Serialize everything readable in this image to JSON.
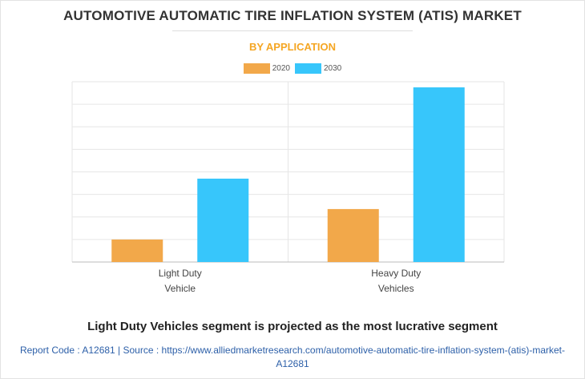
{
  "header": {
    "title": "AUTOMOTIVE AUTOMATIC TIRE INFLATION SYSTEM (ATIS) MARKET",
    "subtitle": "BY APPLICATION"
  },
  "legend": {
    "items": [
      {
        "label": "2020",
        "color": "#f2a84a"
      },
      {
        "label": "2030",
        "color": "#37c6fb"
      }
    ]
  },
  "chart_data": {
    "type": "bar",
    "categories": [
      [
        "Light Duty",
        "Vehicle"
      ],
      [
        "Heavy Duty",
        "Vehicles"
      ]
    ],
    "series": [
      {
        "name": "2020",
        "color": "#f2a84a",
        "values": [
          1.0,
          2.35
        ]
      },
      {
        "name": "2030",
        "color": "#37c6fb",
        "values": [
          3.7,
          7.75
        ]
      }
    ],
    "ylim": [
      0,
      8
    ],
    "gridlines": 8,
    "y_tick_labels_shown": false,
    "grid": true
  },
  "footer": {
    "headline": "Light Duty Vehicles segment is projected as the most lucrative segment",
    "source_line1": "Report Code : A12681  |  Source : https://www.alliedmarketresearch.com/automotive-automatic-tire-inflation-system-(atis)-market-",
    "source_line2": "A12681"
  }
}
